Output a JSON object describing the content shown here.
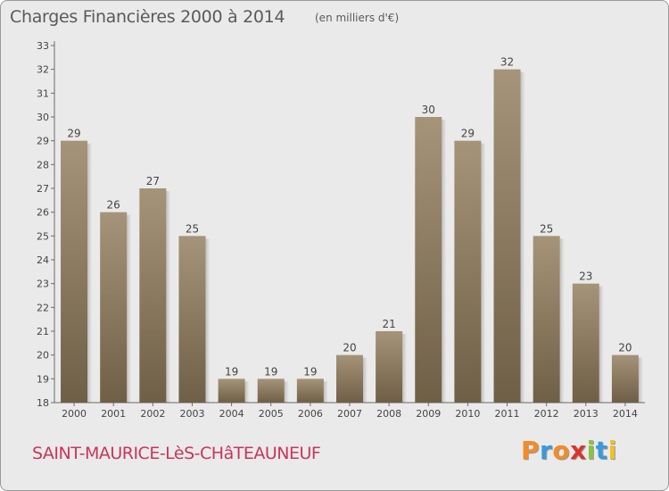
{
  "header": {
    "title": "Charges Financières 2000 à 2014",
    "subtitle": "(en milliers d'€)"
  },
  "footer": {
    "town": "SAINT-MAURICE-LèS-CHâTEAUNEUF",
    "logo": "Proxiti",
    "logo_colors": [
      "#f28c28",
      "#3a9ad9",
      "#f28c28",
      "#d9342b",
      "#8ac43f",
      "#3a9ad9",
      "#f2c028"
    ]
  },
  "chart_data": {
    "type": "bar",
    "title": "Charges Financières 2000 à 2014",
    "subtitle": "(en milliers d'€)",
    "categories": [
      "2000",
      "2001",
      "2002",
      "2003",
      "2004",
      "2005",
      "2006",
      "2007",
      "2008",
      "2009",
      "2010",
      "2011",
      "2012",
      "2013",
      "2014"
    ],
    "values": [
      29,
      26,
      27,
      25,
      19,
      19,
      19,
      20,
      21,
      30,
      29,
      32,
      25,
      23,
      20
    ],
    "ylim": [
      18,
      33
    ],
    "yticks": [
      18,
      19,
      20,
      21,
      22,
      23,
      24,
      25,
      26,
      27,
      28,
      29,
      30,
      31,
      32,
      33
    ],
    "grid": false,
    "bar_color_top": "#a59479",
    "bar_color_bottom": "#6f5f46"
  }
}
